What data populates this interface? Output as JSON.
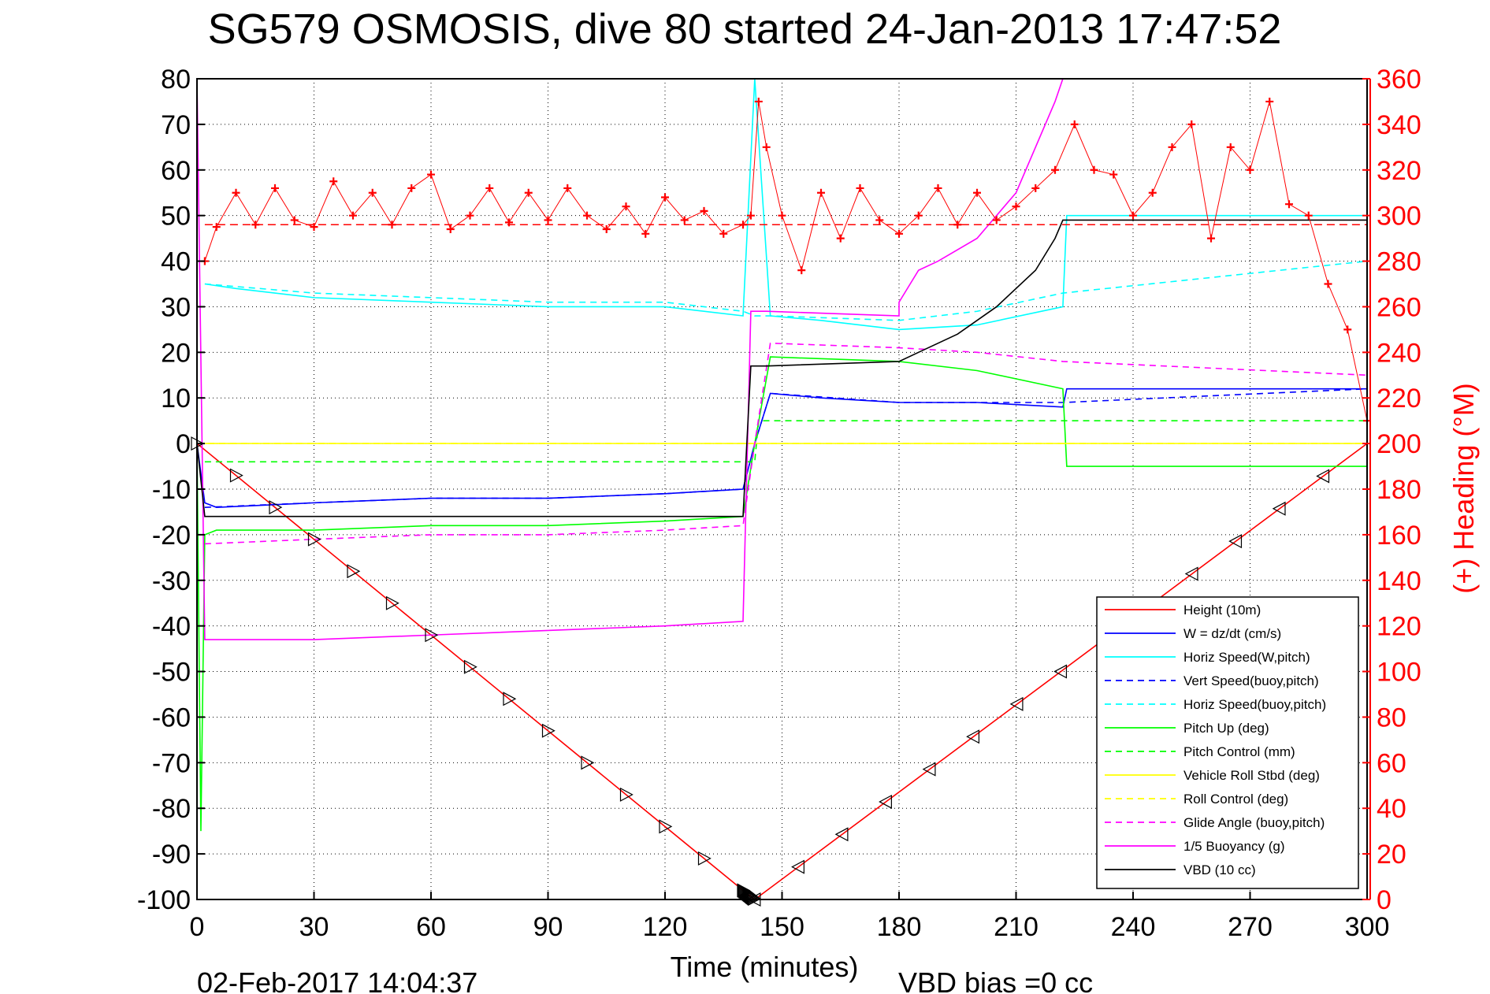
{
  "chart_data": {
    "type": "line",
    "title": "SG579 OSMOSIS, dive 80 started 24-Jan-2013 17:47:52",
    "xlabel": "Time (minutes)",
    "ylabel_right": "(+) Heading (°M)",
    "xlim": [
      0,
      300
    ],
    "ylim_left": [
      -100,
      80
    ],
    "ylim_right": [
      0,
      360
    ],
    "x_ticks": [
      "0",
      "30",
      "60",
      "90",
      "120",
      "150",
      "180",
      "210",
      "240",
      "270",
      "300"
    ],
    "y_ticks_left": [
      "80",
      "70",
      "60",
      "50",
      "40",
      "30",
      "20",
      "10",
      "0",
      "-10",
      "-20",
      "-30",
      "-40",
      "-50",
      "-60",
      "-70",
      "-80",
      "-90",
      "-100"
    ],
    "y_ticks_right": [
      "360",
      "340",
      "320",
      "300",
      "280",
      "260",
      "240",
      "220",
      "200",
      "180",
      "160",
      "140",
      "120",
      "100",
      "80",
      "60",
      "40",
      "20",
      "0"
    ],
    "grid": true,
    "legend_position": "bottom-right",
    "footer_date": "02-Feb-2017 14:04:37",
    "footer_bias": "VBD bias =0 cc",
    "colors": {
      "red": "#ff0000",
      "blue": "#0000ff",
      "cyan": "#00ffff",
      "green": "#00ff00",
      "yellow": "#ffff00",
      "magenta": "#ff00ff",
      "black": "#000000"
    },
    "series": [
      {
        "name": "Height (10m)",
        "color": "#ff0000",
        "style": "solid",
        "x": [
          0,
          140,
          143,
          300
        ],
        "y": [
          0,
          -98,
          -100,
          0
        ]
      },
      {
        "name": "W = dz/dt (cm/s)",
        "color": "#0000ff",
        "style": "solid",
        "x": [
          0,
          2,
          5,
          30,
          60,
          90,
          120,
          140,
          143,
          147,
          160,
          180,
          200,
          222,
          223,
          300
        ],
        "y": [
          0,
          -13,
          -14,
          -13,
          -12,
          -12,
          -11,
          -10,
          0,
          11,
          10,
          9,
          9,
          8,
          12,
          12
        ]
      },
      {
        "name": "Horiz Speed(W,pitch)",
        "color": "#00ffff",
        "style": "solid",
        "x": [
          2,
          10,
          30,
          60,
          90,
          120,
          140,
          143,
          147,
          160,
          180,
          200,
          222,
          223,
          300
        ],
        "y": [
          35,
          34,
          32,
          31,
          30,
          30,
          28,
          80,
          28,
          27,
          25,
          26,
          30,
          50,
          50
        ]
      },
      {
        "name": "Vert Speed(buoy,pitch)",
        "color": "#0000ff",
        "style": "dashed",
        "x": [
          2,
          30,
          60,
          90,
          120,
          140,
          143,
          147,
          180,
          222,
          300
        ],
        "y": [
          -14,
          -13,
          -12,
          -12,
          -11,
          -10,
          0,
          11,
          9,
          9,
          12
        ]
      },
      {
        "name": "Horiz Speed(buoy,pitch)",
        "color": "#00ffff",
        "style": "dashed",
        "x": [
          2,
          30,
          60,
          90,
          120,
          140,
          143,
          147,
          180,
          200,
          222,
          300
        ],
        "y": [
          35,
          33,
          32,
          31,
          31,
          29,
          28,
          28,
          27,
          29,
          33,
          40
        ]
      },
      {
        "name": "Pitch Up (deg)",
        "color": "#00ff00",
        "style": "solid",
        "x": [
          0,
          1,
          2,
          5,
          30,
          60,
          90,
          120,
          140,
          143,
          147,
          180,
          200,
          222,
          223,
          300
        ],
        "y": [
          0,
          -85,
          -20,
          -19,
          -19,
          -18,
          -18,
          -17,
          -16,
          0,
          19,
          18,
          16,
          12,
          -5,
          -5
        ]
      },
      {
        "name": "Pitch Control (mm)",
        "color": "#00ff00",
        "style": "dashed",
        "x": [
          2,
          143,
          144,
          222,
          223,
          300
        ],
        "y": [
          -4,
          -4,
          5,
          5,
          5,
          5
        ]
      },
      {
        "name": "Vehicle Roll Stbd (deg)",
        "color": "#ffff00",
        "style": "solid",
        "x": [
          0,
          30,
          60,
          90,
          120,
          140,
          143,
          147,
          180,
          222,
          300
        ],
        "y": [
          0,
          0,
          0,
          0,
          0,
          0,
          0,
          0,
          0,
          0,
          0
        ]
      },
      {
        "name": "Roll Control (deg)",
        "color": "#ffff00",
        "style": "dashed",
        "x": [
          0,
          30,
          60,
          90,
          120,
          140,
          143,
          147,
          180,
          222,
          300
        ],
        "y": [
          0,
          0,
          0,
          0,
          0,
          0,
          0,
          0,
          0,
          0,
          0
        ]
      },
      {
        "name": "Glide Angle (buoy,pitch)",
        "color": "#ff00ff",
        "style": "dashed",
        "x": [
          2,
          30,
          60,
          90,
          120,
          140,
          143,
          147,
          180,
          200,
          222,
          300
        ],
        "y": [
          -22,
          -21,
          -20,
          -20,
          -19,
          -18,
          0,
          22,
          21,
          20,
          18,
          15
        ]
      },
      {
        "name": "1/5 Buoyancy (g)",
        "color": "#ff00ff",
        "style": "solid",
        "x": [
          0,
          2,
          30,
          60,
          90,
          120,
          140,
          142,
          146,
          180,
          180,
          185,
          190,
          200,
          210,
          220,
          222
        ],
        "y": [
          80,
          -43,
          -43,
          -42,
          -41,
          -40,
          -39,
          29,
          29,
          28,
          31,
          38,
          40,
          45,
          55,
          75,
          80
        ]
      },
      {
        "name": "VBD (10 cc)",
        "color": "#000000",
        "style": "solid",
        "x": [
          0,
          2,
          30,
          60,
          90,
          120,
          140,
          142,
          146,
          180,
          185,
          195,
          205,
          215,
          220,
          222,
          300
        ],
        "y": [
          0,
          -16,
          -16,
          -16,
          -16,
          -16,
          -16,
          17,
          17,
          18,
          20,
          24,
          30,
          38,
          45,
          49,
          49
        ]
      }
    ],
    "heading_series": {
      "name": "(+) Heading",
      "color": "#ff0000",
      "mean_line": 296,
      "x": [
        2,
        5,
        10,
        15,
        20,
        25,
        30,
        35,
        40,
        45,
        50,
        55,
        60,
        65,
        70,
        75,
        80,
        85,
        90,
        95,
        100,
        105,
        110,
        115,
        120,
        125,
        130,
        135,
        140,
        142,
        144,
        146,
        150,
        155,
        160,
        165,
        170,
        175,
        180,
        185,
        190,
        195,
        200,
        205,
        210,
        215,
        220,
        225,
        230,
        235,
        240,
        245,
        250,
        255,
        260,
        265,
        270,
        275,
        280,
        285,
        290,
        295,
        300
      ],
      "y": [
        280,
        295,
        310,
        296,
        312,
        298,
        295,
        315,
        300,
        310,
        296,
        312,
        318,
        294,
        300,
        312,
        297,
        310,
        298,
        312,
        300,
        294,
        304,
        292,
        308,
        298,
        302,
        292,
        296,
        300,
        350,
        330,
        300,
        276,
        310,
        290,
        312,
        298,
        292,
        300,
        312,
        296,
        310,
        298,
        304,
        312,
        320,
        340,
        320,
        318,
        300,
        310,
        330,
        340,
        290,
        330,
        320,
        350,
        305,
        300,
        270,
        250,
        210
      ]
    }
  }
}
